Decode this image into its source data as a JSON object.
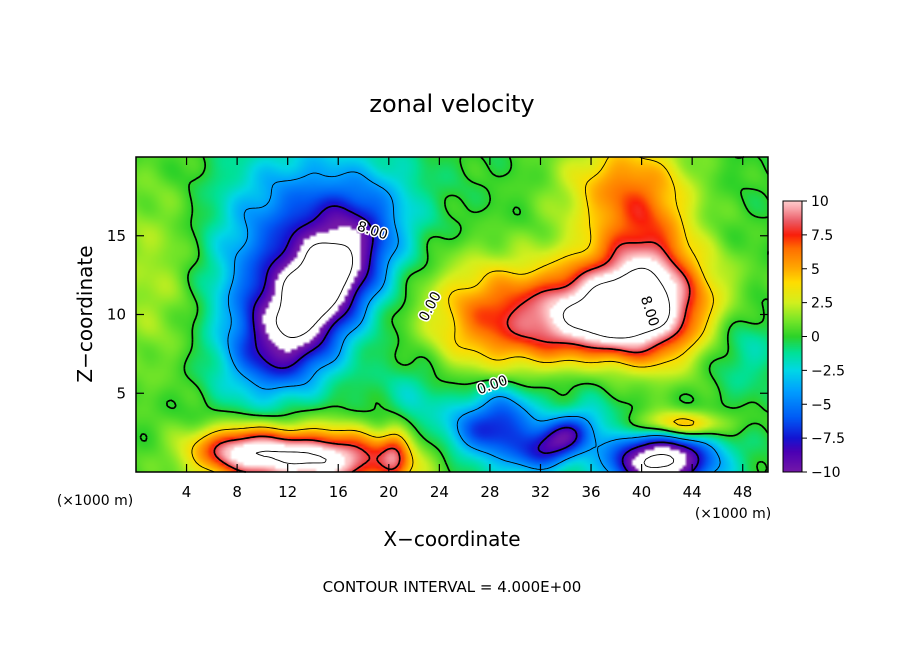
{
  "chart_data": {
    "type": "heatmap",
    "title": "zonal velocity",
    "xlabel": "X−coordinate",
    "ylabel": "Z−coordinate",
    "x_unit_left": "(×1000 m)",
    "x_unit_right": "(×1000 m)",
    "footer": "CONTOUR INTERVAL = 4.000E+00",
    "xlim": [
      0,
      50
    ],
    "ylim": [
      0,
      20
    ],
    "x_ticks": [
      4,
      8,
      12,
      16,
      20,
      24,
      28,
      32,
      36,
      40,
      44,
      48
    ],
    "y_ticks": [
      5,
      10,
      15
    ],
    "colorbar": {
      "range": [
        -10,
        10
      ],
      "ticks": [
        10,
        7.5,
        5,
        2.5,
        0,
        -2.5,
        -5,
        -7.5,
        -10
      ],
      "tick_labels": [
        "10",
        "7.5",
        "5",
        "2.5",
        "0",
        "−2.5",
        "−5",
        "−7.5",
        "−10"
      ]
    },
    "contour_labels": [
      {
        "text": "8.00",
        "x": 18.7,
        "y": 15.3,
        "angle": 18
      },
      {
        "text": "8.00",
        "x": 40.6,
        "y": 10.2,
        "angle": 72
      },
      {
        "text": "0.00",
        "x": 23.3,
        "y": 10.5,
        "angle": -62
      },
      {
        "text": "0.00",
        "x": 28.2,
        "y": 5.5,
        "angle": -20
      }
    ],
    "features": [
      {
        "kind": "max",
        "x": 14.5,
        "y": 11.0,
        "value": -11
      },
      {
        "kind": "max",
        "x": 37.5,
        "y": 10.0,
        "value": 11
      },
      {
        "kind": "max",
        "x": 14.0,
        "y": 0.8,
        "value": 11
      },
      {
        "kind": "max",
        "x": 41.5,
        "y": 0.7,
        "value": -11
      },
      {
        "kind": "max",
        "x": 33.5,
        "y": 2.0,
        "value": -9
      },
      {
        "kind": "max",
        "x": 29.0,
        "y": 3.0,
        "value": -7
      },
      {
        "kind": "max",
        "x": 43.0,
        "y": 3.0,
        "value": 6
      },
      {
        "kind": "max",
        "x": 20.5,
        "y": 1.0,
        "value": 4
      }
    ]
  }
}
